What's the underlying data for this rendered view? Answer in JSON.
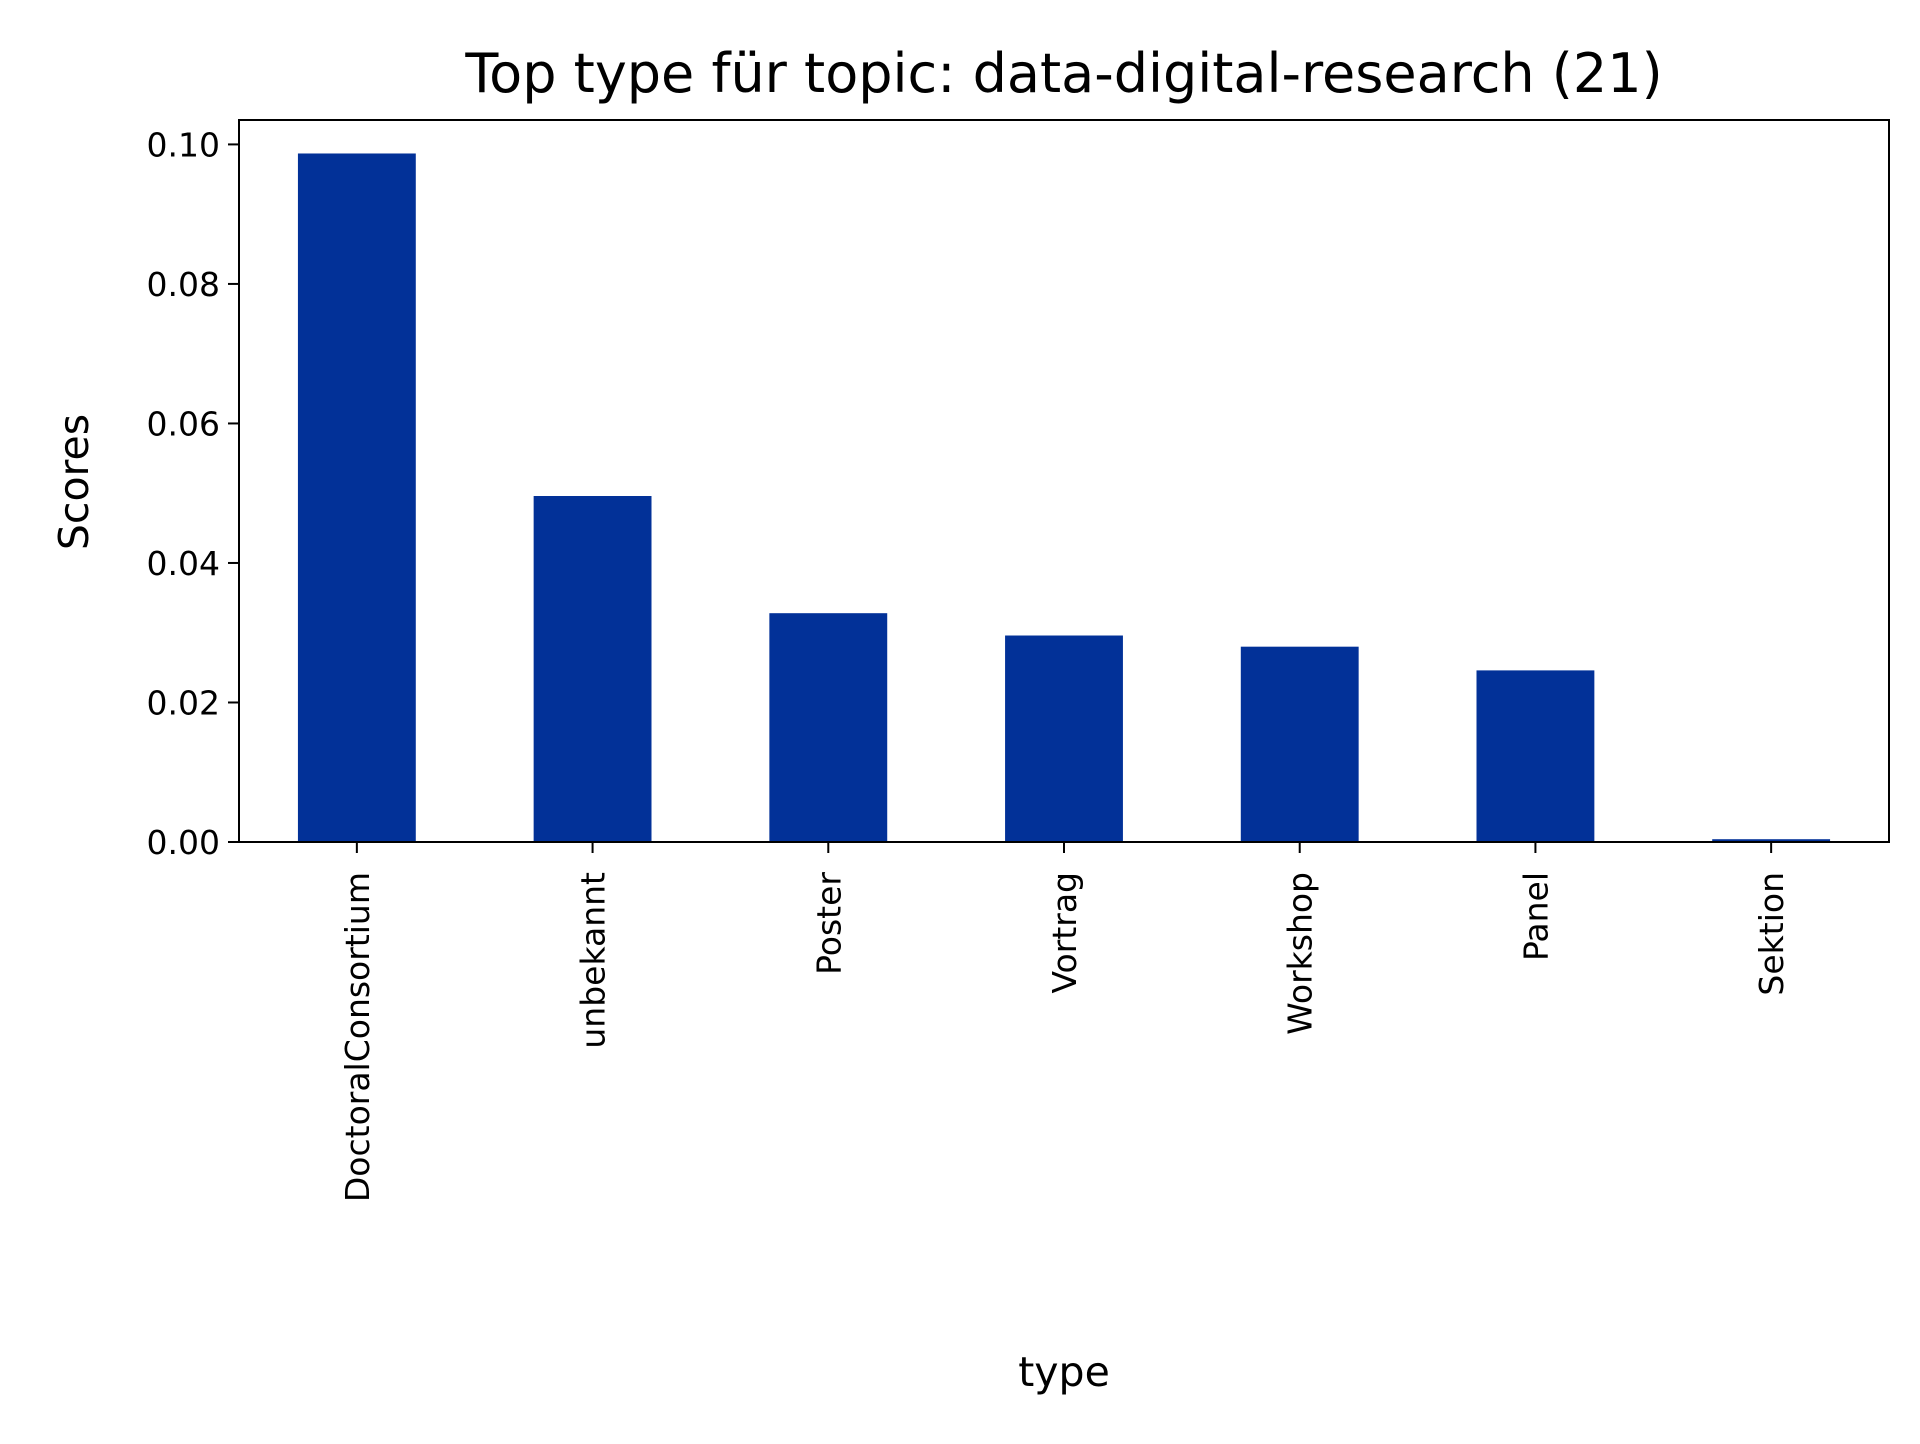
{
  "chart_data": {
    "type": "bar",
    "title": "Top type für topic: data-digital-research (21)",
    "xlabel": "type",
    "ylabel": "Scores",
    "categories": [
      "DoctoralConsortium",
      "unbekannt",
      "Poster",
      "Vortrag",
      "Workshop",
      "Panel",
      "Sektion"
    ],
    "values": [
      0.0987,
      0.0496,
      0.0328,
      0.0296,
      0.028,
      0.0246,
      0.0004
    ],
    "ylim": [
      0,
      0.1035
    ],
    "yticks": [
      "0.00",
      "0.02",
      "0.04",
      "0.06",
      "0.08",
      "0.10"
    ],
    "bar_color": "#023198",
    "grid": false,
    "legend": "none"
  }
}
